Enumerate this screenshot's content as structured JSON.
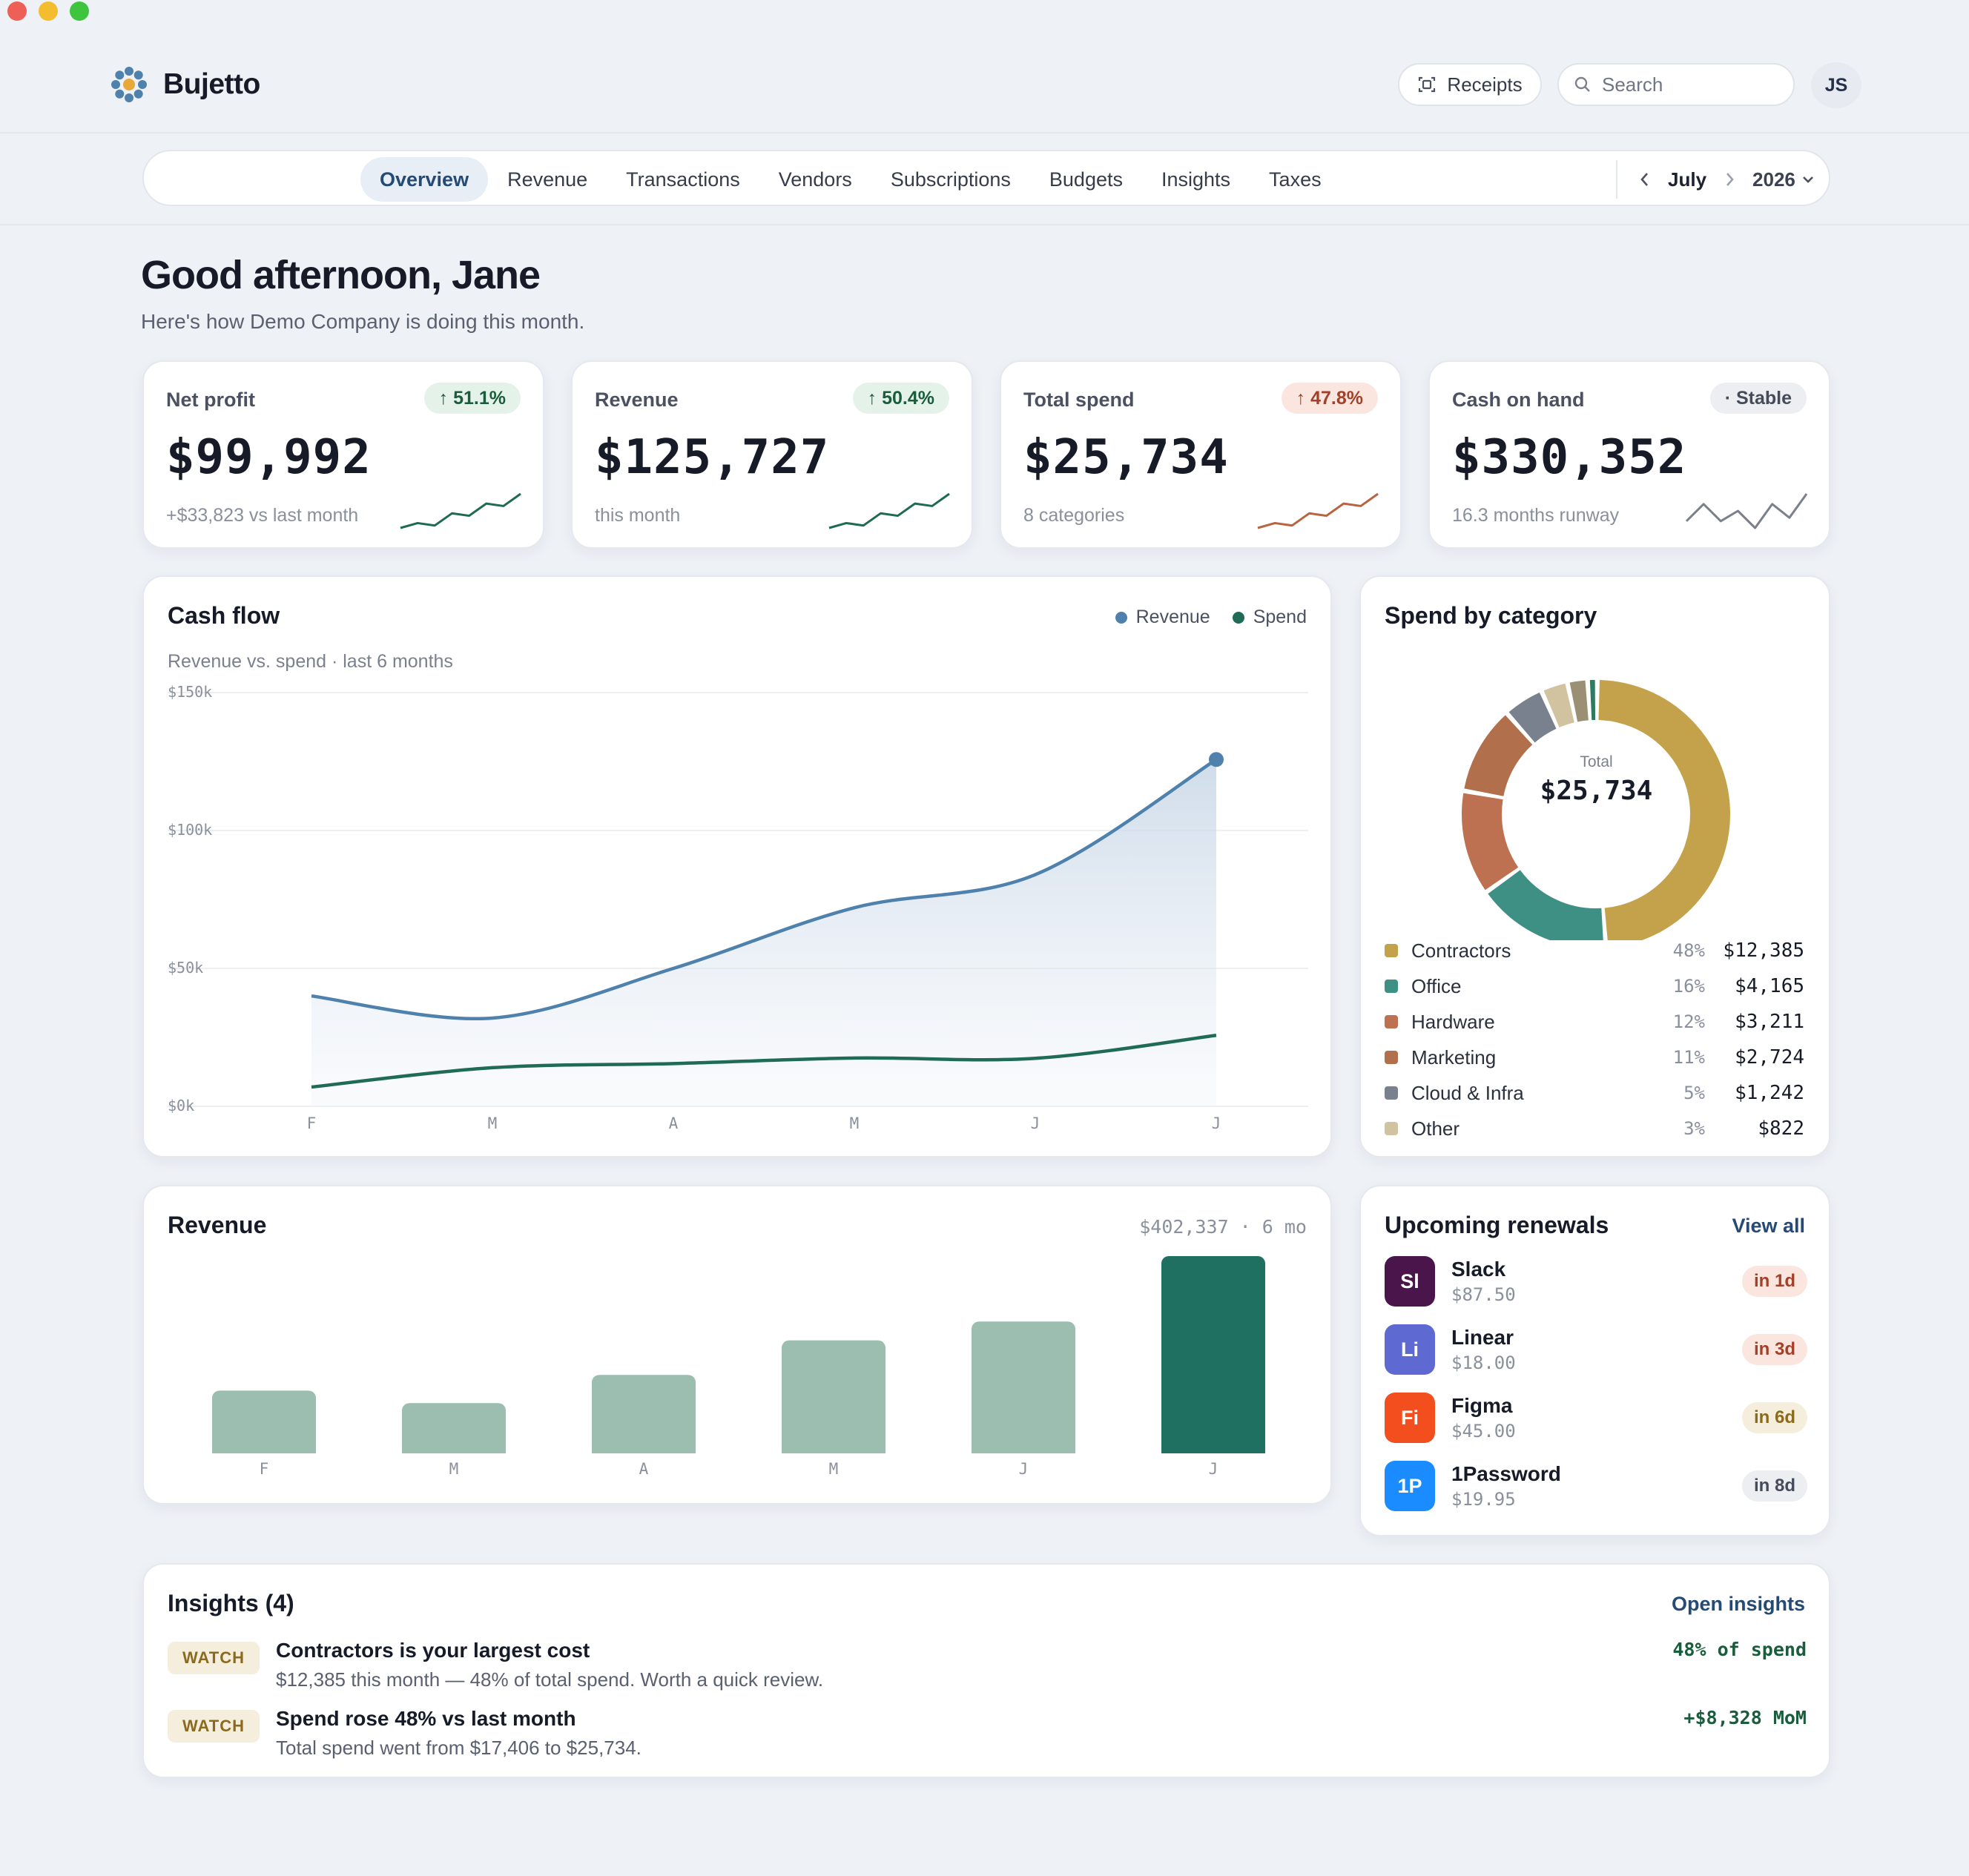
{
  "app": {
    "name": "Bujetto",
    "receipts_label": "Receipts",
    "search_placeholder": "Search",
    "user_initials": "JS"
  },
  "nav": {
    "tabs": [
      "Overview",
      "Revenue",
      "Transactions",
      "Vendors",
      "Subscriptions",
      "Budgets",
      "Insights",
      "Taxes"
    ],
    "active": "Overview",
    "month": "July",
    "year": "2026"
  },
  "greeting": {
    "title": "Good afternoon, Jane",
    "subtitle": "Here's how Demo Company is doing this month."
  },
  "kpis": [
    {
      "label": "Net profit",
      "badge": "↑ 51.1%",
      "badge_type": "up",
      "value": "$99,992",
      "sub": "+$33,823 vs last month",
      "spark_color": "#1f6b4f",
      "spark": [
        2,
        3,
        2.5,
        5,
        4.5,
        7,
        6.5,
        9
      ]
    },
    {
      "label": "Revenue",
      "badge": "↑ 50.4%",
      "badge_type": "up",
      "value": "$125,727",
      "sub": "this month",
      "spark_color": "#1f6b4f",
      "spark": [
        2,
        3,
        2.5,
        5,
        4.5,
        7,
        6.5,
        9
      ]
    },
    {
      "label": "Total spend",
      "badge": "↑ 47.8%",
      "badge_type": "warn",
      "value": "$25,734",
      "sub": "8 categories",
      "spark_color": "#b8643f",
      "spark": [
        2,
        3,
        2.5,
        5,
        4.5,
        7,
        6.5,
        9
      ]
    },
    {
      "label": "Cash on hand",
      "badge": "· Stable",
      "badge_type": "stable",
      "value": "$330,352",
      "sub": "16.3 months runway",
      "spark_color": "#7b808c",
      "spark": [
        5,
        5.5,
        5,
        5.3,
        4.8,
        5.5,
        5.1,
        5.8
      ]
    }
  ],
  "cashflow": {
    "title": "Cash flow",
    "subtitle": "Revenue vs. spend · last 6 months",
    "legend": [
      {
        "name": "Revenue",
        "color": "#4f81ad"
      },
      {
        "name": "Spend",
        "color": "#1f6b55"
      }
    ]
  },
  "spend_by_category": {
    "title": "Spend by category",
    "total_label": "Total",
    "total_value": "$25,734",
    "categories": [
      {
        "name": "Contractors",
        "pct": "48%",
        "amount": "$12,385",
        "color": "#c4a24c"
      },
      {
        "name": "Office",
        "pct": "16%",
        "amount": "$4,165",
        "color": "#3e8f84"
      },
      {
        "name": "Hardware",
        "pct": "12%",
        "amount": "$3,211",
        "color": "#bd7150"
      },
      {
        "name": "Marketing",
        "pct": "11%",
        "amount": "$2,724",
        "color": "#b16f4b"
      },
      {
        "name": "Cloud & Infra",
        "pct": "5%",
        "amount": "$1,242",
        "color": "#7a818e"
      },
      {
        "name": "Other",
        "pct": "3%",
        "amount": "$822",
        "color": "#d1c3a0"
      }
    ],
    "extra_slices": [
      {
        "value": 2.5,
        "color": "#9b8f74"
      },
      {
        "value": 1.2,
        "color": "#2f7a62"
      }
    ]
  },
  "revenue_panel": {
    "title": "Revenue",
    "summary": "$402,337 · 6 mo",
    "highlight_color": "#1f7060",
    "bar_color": "#9cbeb0"
  },
  "renewals": {
    "title": "Upcoming renewals",
    "view_all": "View all",
    "items": [
      {
        "initials": "Sl",
        "name": "Slack",
        "price": "$87.50",
        "due": "in 1d",
        "color": "#4a154b",
        "badge_bg": "#fbe6df",
        "badge_fg": "#a3402a"
      },
      {
        "initials": "Li",
        "name": "Linear",
        "price": "$18.00",
        "due": "in 3d",
        "color": "#5e6ad2",
        "badge_bg": "#fbe6df",
        "badge_fg": "#a3402a"
      },
      {
        "initials": "Fi",
        "name": "Figma",
        "price": "$45.00",
        "due": "in 6d",
        "color": "#f24e1e",
        "badge_bg": "#f5eedd",
        "badge_fg": "#8a6a1f"
      },
      {
        "initials": "1P",
        "name": "1Password",
        "price": "$19.95",
        "due": "in 8d",
        "color": "#1a8cff",
        "badge_bg": "#eceef2",
        "badge_fg": "#454b59"
      }
    ]
  },
  "insights": {
    "title": "Insights (4)",
    "open_label": "Open insights",
    "items": [
      {
        "tag": "WATCH",
        "title": "Contractors is your largest cost",
        "desc": "$12,385 this month — 48% of total spend. Worth a quick review.",
        "metric": "48% of spend"
      },
      {
        "tag": "WATCH",
        "title": "Spend rose 48% vs last month",
        "desc": "Total spend went from $17,406 to $25,734.",
        "metric": "+$8,328 MoM"
      }
    ]
  },
  "chart_data": [
    {
      "type": "line",
      "title": "Cash flow",
      "x": [
        "F",
        "M",
        "A",
        "M",
        "J",
        "J"
      ],
      "y_ticks": [
        "$0k",
        "$50k",
        "$100k",
        "$150k"
      ],
      "ylim": [
        0,
        150000
      ],
      "series": [
        {
          "name": "Revenue",
          "values": [
            40000,
            32000,
            50000,
            72000,
            84000,
            125727
          ]
        },
        {
          "name": "Spend",
          "values": [
            7000,
            14000,
            15500,
            17500,
            17406,
            25734
          ]
        }
      ],
      "legend": "top-right"
    },
    {
      "type": "pie",
      "title": "Spend by category",
      "labels": [
        "Contractors",
        "Office",
        "Hardware",
        "Marketing",
        "Cloud & Infra",
        "Other"
      ],
      "values": [
        12385,
        4165,
        3211,
        2724,
        1242,
        822
      ]
    },
    {
      "type": "bar",
      "title": "Revenue",
      "categories": [
        "F",
        "M",
        "A",
        "M",
        "J",
        "J"
      ],
      "values": [
        40000,
        32000,
        50000,
        72000,
        84000,
        125727
      ],
      "ylim": [
        0,
        125727
      ]
    }
  ]
}
